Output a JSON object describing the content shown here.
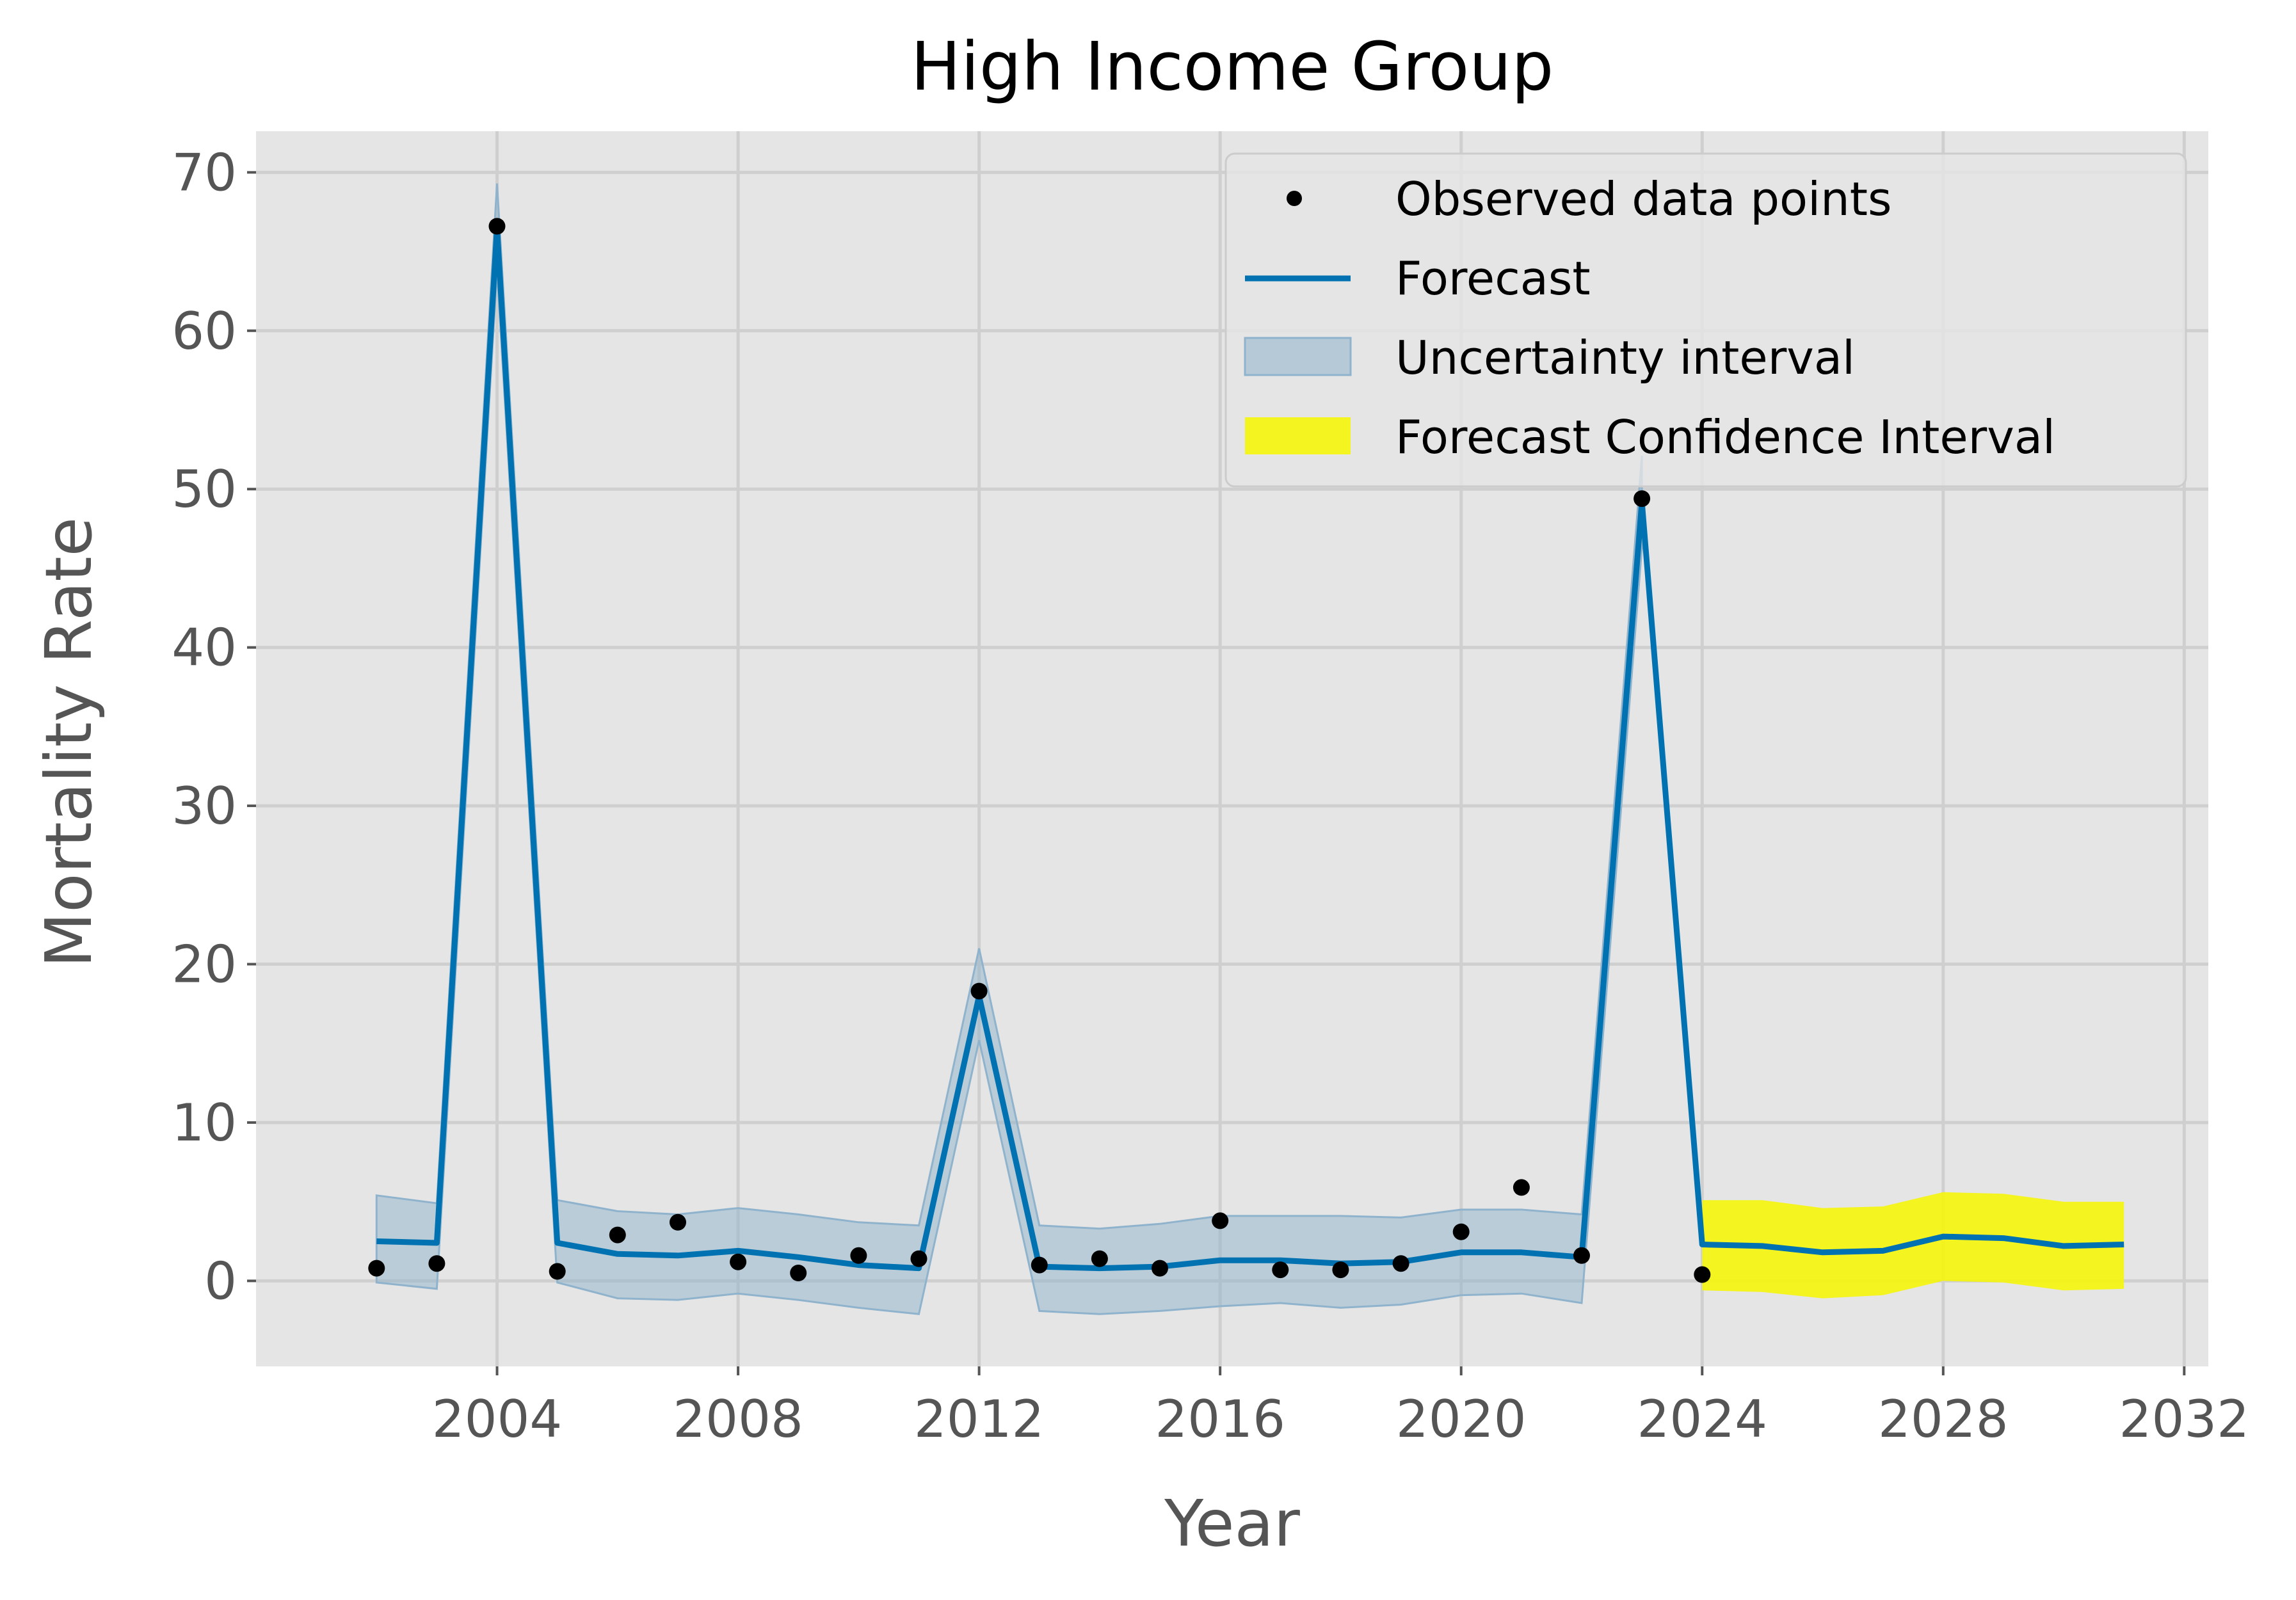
{
  "chart_data": {
    "type": "line",
    "title": "High Income Group",
    "xlabel": "Year",
    "ylabel": "Mortality Rate",
    "xlim": [
      2000.0,
      2032.4
    ],
    "ylim": [
      -5.4,
      72.6
    ],
    "grid": true,
    "legend_position": "top-right",
    "x_ticks": [
      2004,
      2008,
      2012,
      2016,
      2020,
      2024,
      2028,
      2032
    ],
    "y_ticks": [
      0,
      10,
      20,
      30,
      40,
      50,
      60,
      70
    ],
    "colors": {
      "background": "#e5e5e5",
      "grid": "#cfcfcf",
      "forecast": "#0072b2",
      "uncertainty": "#8fb3cc",
      "forecast_ci": "#f5f50a",
      "observed": "#000000"
    },
    "observed": {
      "name": "Observed data points",
      "x": [
        2002,
        2003,
        2004,
        2005,
        2006,
        2007,
        2008,
        2009,
        2010,
        2011,
        2012,
        2013,
        2014,
        2015,
        2016,
        2017,
        2018,
        2019,
        2020,
        2021,
        2022,
        2023,
        2024
      ],
      "y": [
        0.8,
        1.1,
        66.6,
        0.6,
        2.9,
        3.7,
        1.2,
        0.5,
        1.6,
        1.4,
        18.3,
        1.0,
        1.4,
        0.8,
        3.8,
        0.7,
        0.7,
        1.1,
        3.1,
        5.9,
        1.6,
        49.4,
        0.4
      ]
    },
    "forecast": {
      "name": "Forecast",
      "x": [
        2002,
        2003,
        2004,
        2005,
        2006,
        2007,
        2008,
        2009,
        2010,
        2011,
        2012,
        2013,
        2014,
        2015,
        2016,
        2017,
        2018,
        2019,
        2020,
        2021,
        2022,
        2023,
        2024,
        2025,
        2026,
        2027,
        2028,
        2029,
        2030,
        2031
      ],
      "y": [
        2.5,
        2.4,
        66.5,
        2.4,
        1.7,
        1.6,
        1.9,
        1.5,
        1.0,
        0.8,
        18.0,
        0.9,
        0.8,
        0.9,
        1.3,
        1.3,
        1.1,
        1.2,
        1.8,
        1.8,
        1.5,
        49.2,
        2.3,
        2.2,
        1.8,
        1.9,
        2.8,
        2.7,
        2.2,
        2.3
      ]
    },
    "uncertainty": {
      "name": "Uncertainty interval",
      "x": [
        2002,
        2003,
        2004,
        2005,
        2006,
        2007,
        2008,
        2009,
        2010,
        2011,
        2012,
        2013,
        2014,
        2015,
        2016,
        2017,
        2018,
        2019,
        2020,
        2021,
        2022,
        2023
      ],
      "lower": [
        -0.1,
        -0.5,
        63.8,
        -0.1,
        -1.1,
        -1.2,
        -0.8,
        -1.2,
        -1.7,
        -2.1,
        15.2,
        -1.9,
        -2.1,
        -1.9,
        -1.6,
        -1.4,
        -1.7,
        -1.5,
        -0.9,
        -0.8,
        -1.4,
        46.3
      ],
      "upper": [
        5.4,
        4.9,
        69.3,
        5.1,
        4.4,
        4.2,
        4.6,
        4.2,
        3.7,
        3.5,
        21.0,
        3.5,
        3.3,
        3.6,
        4.1,
        4.1,
        4.1,
        4.0,
        4.5,
        4.5,
        4.2,
        52.1
      ]
    },
    "forecast_ci": {
      "name": "Forecast Confidence Interval",
      "x": [
        2024,
        2025,
        2026,
        2027,
        2028,
        2029,
        2030,
        2031
      ],
      "lower": [
        -0.6,
        -0.7,
        -1.1,
        -0.9,
        0.0,
        -0.1,
        -0.6,
        -0.5
      ],
      "upper": [
        5.1,
        5.1,
        4.6,
        4.7,
        5.6,
        5.5,
        5.0,
        5.0
      ]
    }
  }
}
